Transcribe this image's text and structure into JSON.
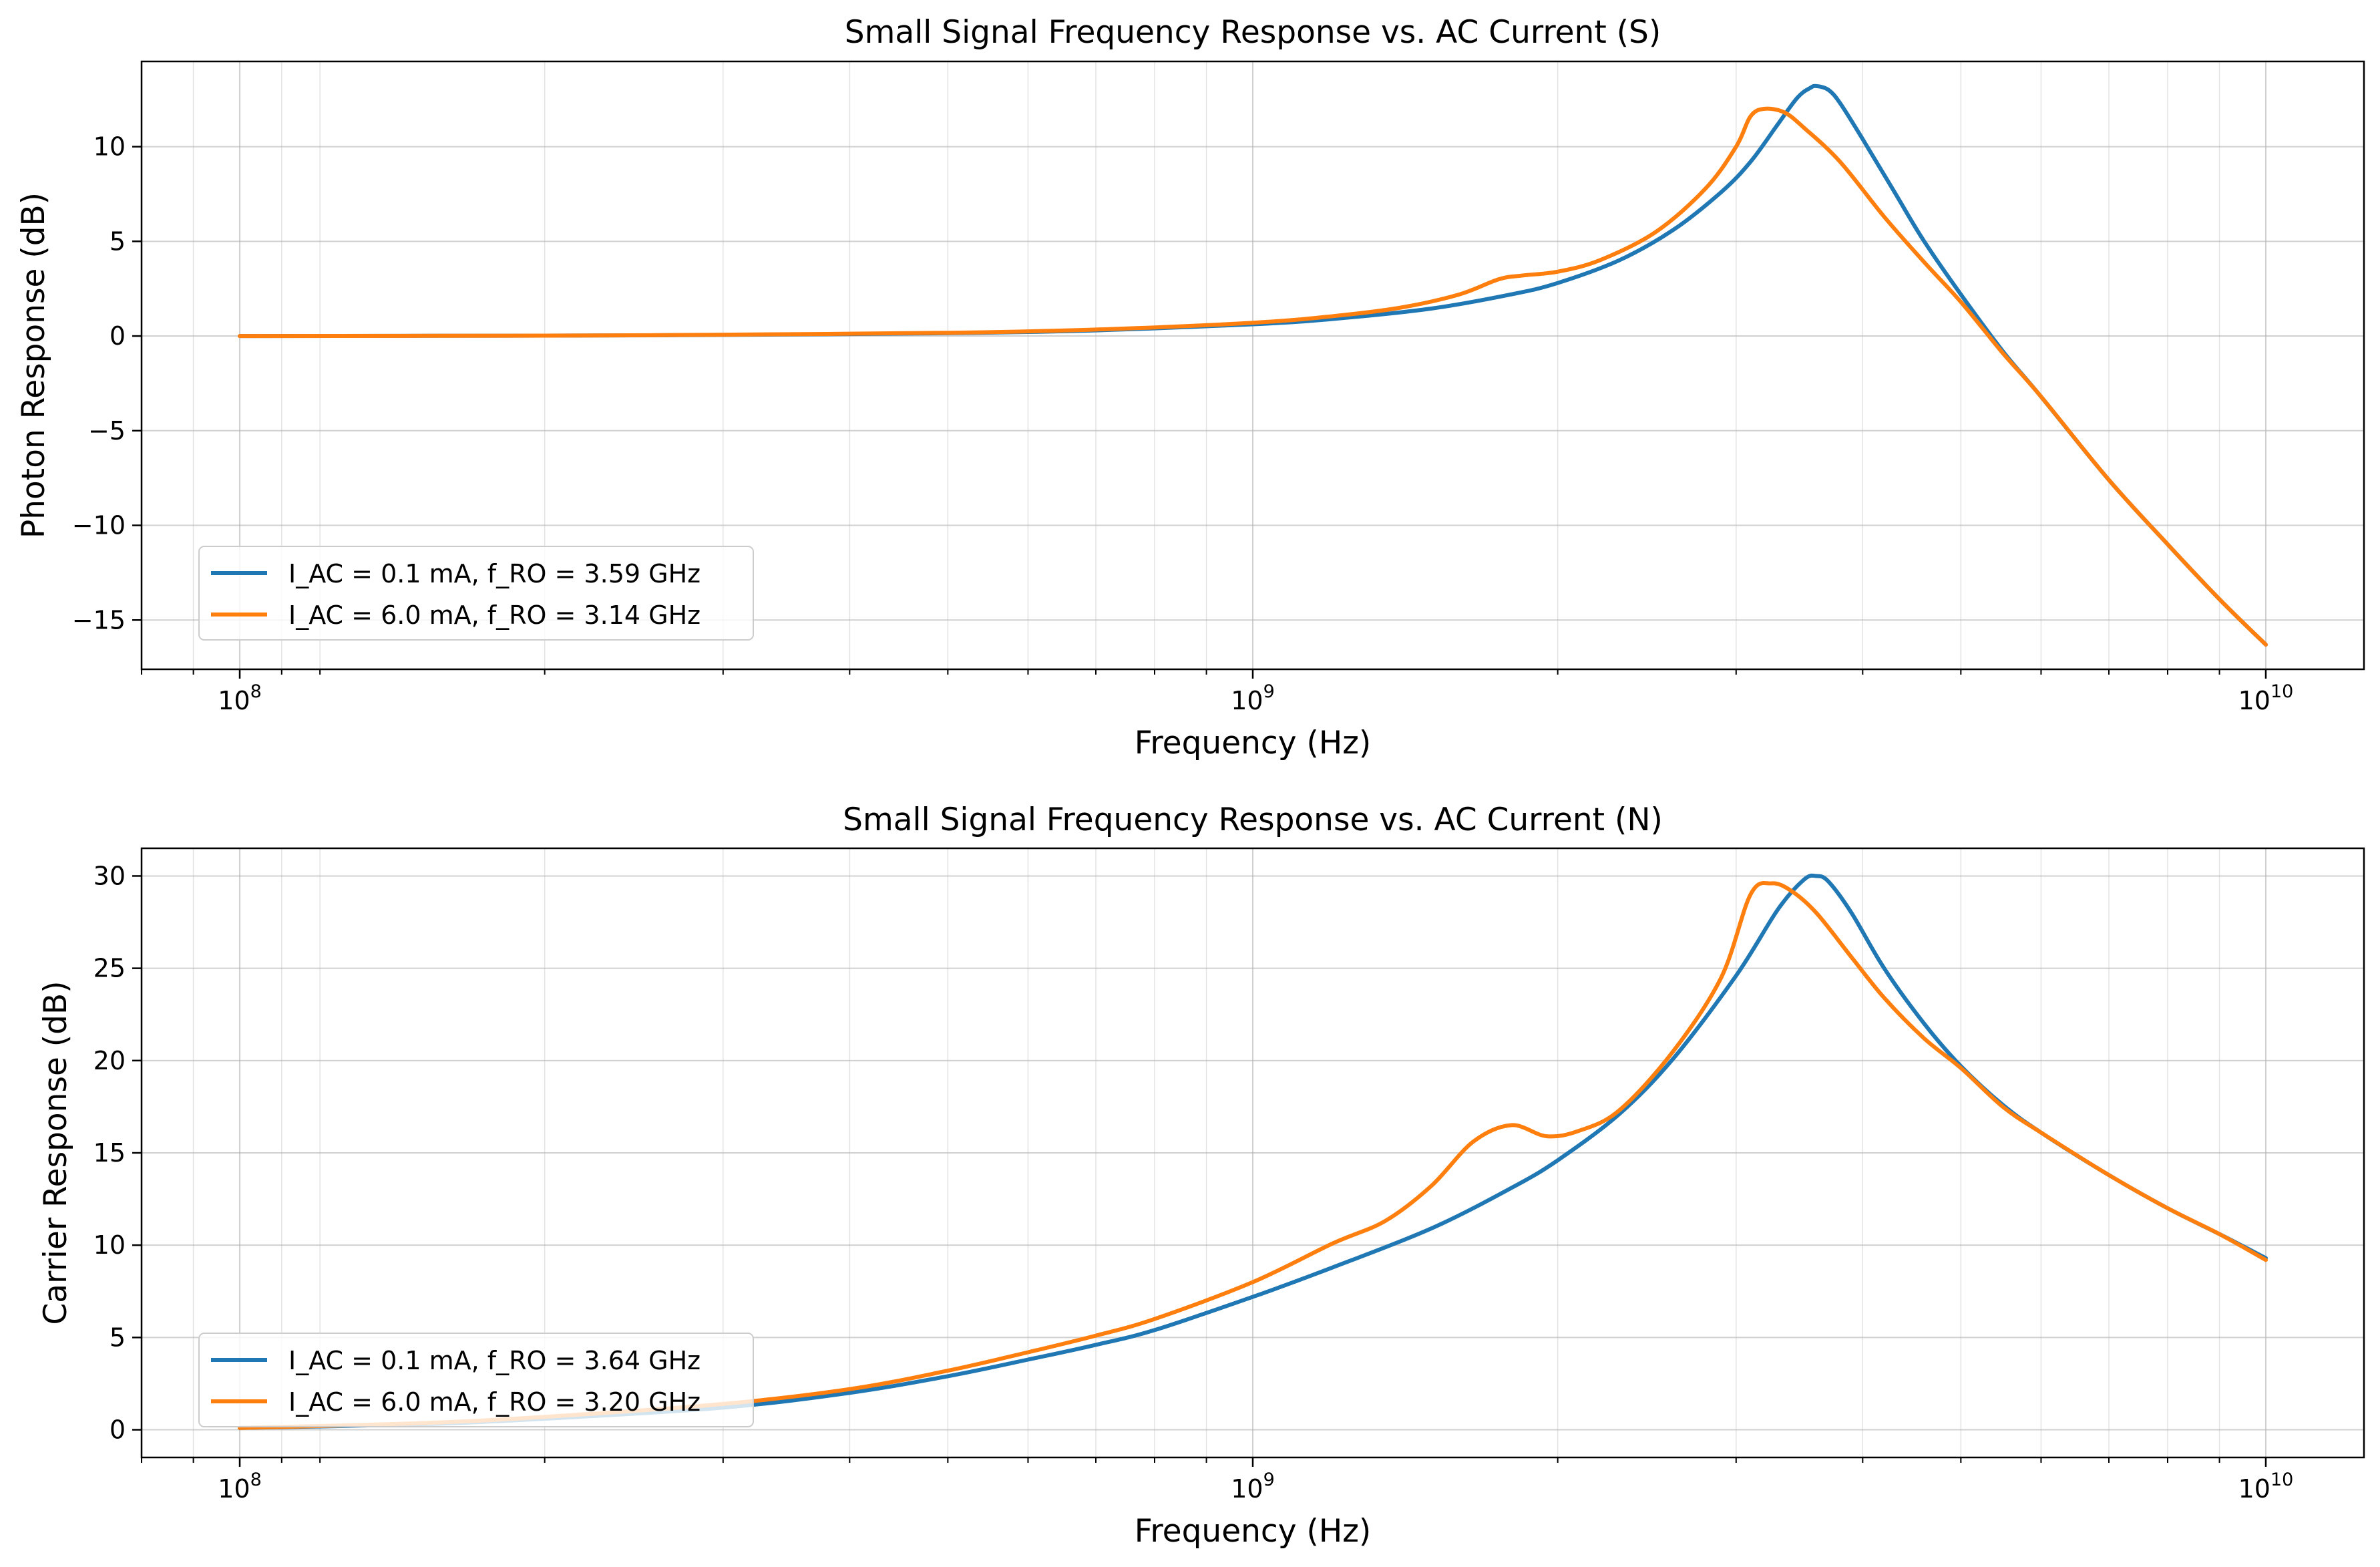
{
  "chart_data": [
    {
      "type": "line",
      "title": "Small Signal Frequency Response vs. AC Current (S)",
      "xlabel": "Frequency (Hz)",
      "ylabel": "Photon Response (dB)",
      "x_scale": "log",
      "xlim": [
        80000000,
        12500000000
      ],
      "ylim": [
        -17.6,
        14.5
      ],
      "x_ticks": [
        100000000,
        1000000000,
        10000000000
      ],
      "x_tick_labels": [
        {
          "base": "10",
          "exp": "8"
        },
        {
          "base": "10",
          "exp": "9"
        },
        {
          "base": "10",
          "exp": "10"
        }
      ],
      "y_ticks": [
        -15,
        -10,
        -5,
        0,
        5,
        10
      ],
      "y_tick_labels": [
        "−15",
        "−10",
        "−5",
        "0",
        "5",
        "10"
      ],
      "grid": true,
      "legend_position": "lower-left",
      "series": [
        {
          "name": "I_AC = 0.1 mA, f_RO = 3.59 GHz",
          "color": "#1f77b4",
          "x": [
            100000000.0,
            200000000.0,
            300000000.0,
            500000000.0,
            700000000.0,
            1000000000.0,
            1200000000.0,
            1500000000.0,
            1800000000.0,
            2000000000.0,
            2300000000.0,
            2600000000.0,
            2900000000.0,
            3100000000.0,
            3300000000.0,
            3450000000.0,
            3550000000.0,
            3600000000.0,
            3700000000.0,
            3800000000.0,
            4000000000.0,
            4300000000.0,
            4600000000.0,
            5000000000.0,
            5500000000.0,
            6000000000.0,
            7000000000.0,
            8000000000.0,
            9000000000.0,
            10000000000.0
          ],
          "y": [
            0,
            0.02,
            0.06,
            0.15,
            0.3,
            0.62,
            0.9,
            1.45,
            2.2,
            2.8,
            4.0,
            5.6,
            7.6,
            9.2,
            11.2,
            12.6,
            13.1,
            13.2,
            13.0,
            12.3,
            10.4,
            7.6,
            5.0,
            2.2,
            -0.8,
            -3.2,
            -7.6,
            -11.0,
            -13.9,
            -16.3
          ]
        },
        {
          "name": "I_AC = 6.0 mA, f_RO = 3.14 GHz",
          "color": "#ff7f0e",
          "x": [
            100000000.0,
            200000000.0,
            300000000.0,
            500000000.0,
            700000000.0,
            1000000000.0,
            1200000000.0,
            1400000000.0,
            1600000000.0,
            1750000000.0,
            1850000000.0,
            2000000000.0,
            2200000000.0,
            2500000000.0,
            2800000000.0,
            3000000000.0,
            3100000000.0,
            3200000000.0,
            3350000000.0,
            3500000000.0,
            3800000000.0,
            4200000000.0,
            4600000000.0,
            5000000000.0,
            5500000000.0,
            6000000000.0,
            7000000000.0,
            8000000000.0,
            9000000000.0,
            10000000000.0
          ],
          "y": [
            0,
            0.02,
            0.07,
            0.17,
            0.34,
            0.7,
            1.05,
            1.5,
            2.2,
            3.0,
            3.2,
            3.4,
            4.0,
            5.5,
            7.8,
            10.0,
            11.6,
            12.0,
            11.8,
            11.0,
            9.2,
            6.3,
            3.9,
            1.8,
            -0.9,
            -3.2,
            -7.6,
            -11.0,
            -13.9,
            -16.3
          ]
        }
      ]
    },
    {
      "type": "line",
      "title": "Small Signal Frequency Response vs. AC Current (N)",
      "xlabel": "Frequency (Hz)",
      "ylabel": "Carrier Response (dB)",
      "x_scale": "log",
      "xlim": [
        80000000,
        12500000000
      ],
      "ylim": [
        -1.5,
        31.5
      ],
      "x_ticks": [
        100000000,
        1000000000,
        10000000000
      ],
      "x_tick_labels": [
        {
          "base": "10",
          "exp": "8"
        },
        {
          "base": "10",
          "exp": "9"
        },
        {
          "base": "10",
          "exp": "10"
        }
      ],
      "y_ticks": [
        0,
        5,
        10,
        15,
        20,
        25,
        30
      ],
      "y_tick_labels": [
        "0",
        "5",
        "10",
        "15",
        "20",
        "25",
        "30"
      ],
      "grid": true,
      "legend_position": "lower-left",
      "series": [
        {
          "name": "I_AC = 0.1 mA, f_RO = 3.64 GHz",
          "color": "#1f77b4",
          "x": [
            100000000.0,
            150000000.0,
            200000000.0,
            300000000.0,
            400000000.0,
            500000000.0,
            600000000.0,
            700000000.0,
            800000000.0,
            1000000000.0,
            1200000000.0,
            1500000000.0,
            1800000000.0,
            2000000000.0,
            2300000000.0,
            2600000000.0,
            3000000000.0,
            3300000000.0,
            3500000000.0,
            3600000000.0,
            3700000000.0,
            3900000000.0,
            4200000000.0,
            4600000000.0,
            5000000000.0,
            5500000000.0,
            6000000000.0,
            7000000000.0,
            8000000000.0,
            9000000000.0,
            10000000000.0
          ],
          "y": [
            0.1,
            0.3,
            0.6,
            1.2,
            2.0,
            2.9,
            3.8,
            4.6,
            5.4,
            7.2,
            8.8,
            10.9,
            13.1,
            14.6,
            17.1,
            20.1,
            24.6,
            28.2,
            29.8,
            30.0,
            29.7,
            28.0,
            25.0,
            22.0,
            19.7,
            17.6,
            16.1,
            13.8,
            12.0,
            10.6,
            9.3
          ]
        },
        {
          "name": "I_AC = 6.0 mA, f_RO = 3.20 GHz",
          "color": "#ff7f0e",
          "x": [
            100000000.0,
            150000000.0,
            200000000.0,
            300000000.0,
            400000000.0,
            500000000.0,
            600000000.0,
            700000000.0,
            800000000.0,
            1000000000.0,
            1200000000.0,
            1350000000.0,
            1500000000.0,
            1650000000.0,
            1800000000.0,
            1950000000.0,
            2100000000.0,
            2300000000.0,
            2600000000.0,
            2900000000.0,
            3100000000.0,
            3250000000.0,
            3400000000.0,
            3600000000.0,
            3900000000.0,
            4200000000.0,
            4600000000.0,
            5000000000.0,
            5500000000.0,
            6000000000.0,
            7000000000.0,
            8000000000.0,
            9000000000.0,
            10000000000.0
          ],
          "y": [
            0.1,
            0.35,
            0.7,
            1.4,
            2.2,
            3.2,
            4.2,
            5.1,
            6.0,
            8.0,
            10.1,
            11.3,
            13.2,
            15.6,
            16.5,
            15.9,
            16.2,
            17.3,
            20.5,
            24.5,
            29.0,
            29.6,
            29.2,
            28.0,
            25.6,
            23.4,
            21.2,
            19.6,
            17.5,
            16.1,
            13.8,
            12.0,
            10.6,
            9.2
          ]
        }
      ]
    }
  ]
}
